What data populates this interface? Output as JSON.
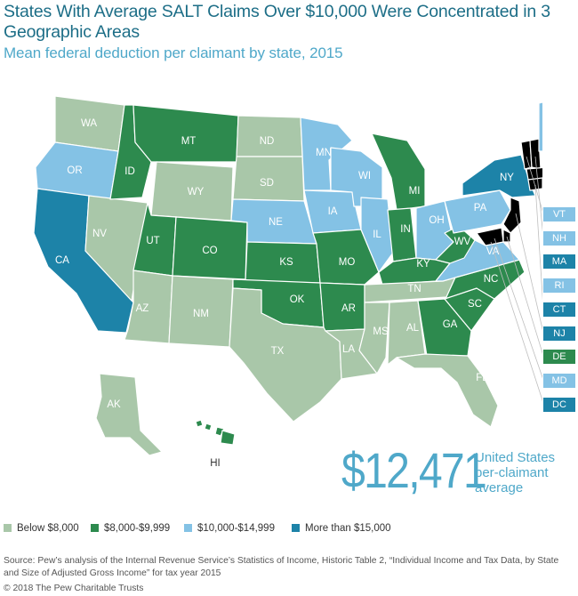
{
  "title": "States With Average SALT Claims Over $10,000 Were Concentrated in 3 Geographic Areas",
  "subtitle": "Mean federal deduction per claimant by state, 2015",
  "colors": {
    "below_8000": "#a9c7a9",
    "8000_9999": "#2d8a4e",
    "10000_14999": "#84c2e5",
    "more_15000": "#1d83a8"
  },
  "states": {
    "WA": "Below $8,000",
    "OR": "$10,000-$14,999",
    "CA": "More than $15,000",
    "ID": "$8,000-$9,999",
    "NV": "Below $8,000",
    "MT": "$8,000-$9,999",
    "WY": "Below $8,000",
    "UT": "$8,000-$9,999",
    "AZ": "Below $8,000",
    "CO": "$8,000-$9,999",
    "NM": "Below $8,000",
    "ND": "Below $8,000",
    "SD": "Below $8,000",
    "NE": "$10,000-$14,999",
    "KS": "$8,000-$9,999",
    "OK": "$8,000-$9,999",
    "TX": "Below $8,000",
    "MN": "$10,000-$14,999",
    "IA": "$10,000-$14,999",
    "MO": "$8,000-$9,999",
    "AR": "$8,000-$9,999",
    "LA": "Below $8,000",
    "WI": "$10,000-$14,999",
    "IL": "$10,000-$14,999",
    "MI": "$8,000-$9,999",
    "IN": "$8,000-$9,999",
    "OH": "$10,000-$14,999",
    "KY": "$8,000-$9,999",
    "TN": "Below $8,000",
    "MS": "Below $8,000",
    "AL": "Below $8,000",
    "GA": "$8,000-$9,999",
    "FL": "Below $8,000",
    "SC": "$8,000-$9,999",
    "NC": "$8,000-$9,999",
    "VA": "$10,000-$14,999",
    "WV": "$8,000-$9,999",
    "PA": "$10,000-$14,999",
    "NY": "More than $15,000",
    "ME": "$10,000-$14,999",
    "AK": "Below $8,000",
    "HI": "$8,000-$9,999"
  },
  "callouts": [
    {
      "label": "VT",
      "category": "$10,000-$14,999"
    },
    {
      "label": "NH",
      "category": "$10,000-$14,999"
    },
    {
      "label": "MA",
      "category": "More than $15,000"
    },
    {
      "label": "RI",
      "category": "$10,000-$14,999"
    },
    {
      "label": "CT",
      "category": "More than $15,000"
    },
    {
      "label": "NJ",
      "category": "More than $15,000"
    },
    {
      "label": "DE",
      "category": "$8,000-$9,999"
    },
    {
      "label": "MD",
      "category": "$10,000-$14,999"
    },
    {
      "label": "DC",
      "category": "More than $15,000"
    }
  ],
  "highlight": {
    "value": "$12,471",
    "caption": "United States per-claimant average"
  },
  "legend": [
    {
      "label": "Below $8,000",
      "color": "#a9c7a9"
    },
    {
      "label": "$8,000-$9,999",
      "color": "#2d8a4e"
    },
    {
      "label": "$10,000-$14,999",
      "color": "#84c2e5"
    },
    {
      "label": "More than $15,000",
      "color": "#1d83a8"
    }
  ],
  "source": "Source: Pew’s analysis of the Internal Revenue Service’s Statistics of Income, Historic Table 2, “Individual Income and Tax Data, by State and Size of Adjusted Gross Income” for tax year 2015",
  "copyright": "© 2018 The Pew Charitable Trusts"
}
